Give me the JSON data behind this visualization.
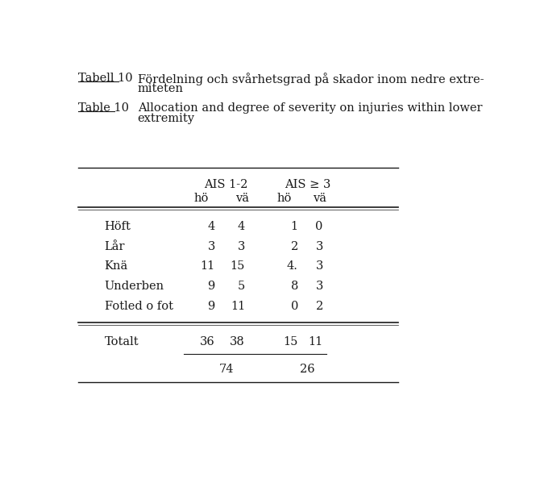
{
  "title_swedish": "Tabell 10",
  "title_swedish_text1": "Fördelning och svårhetsgrad på skador inom nedre extre-",
  "title_swedish_text2": "miteten",
  "title_english": "Table 10",
  "title_english_text1": "Allocation and degree of severity on injuries within lower",
  "title_english_text2": "extremity",
  "col_header1": "AIS 1-2",
  "col_header2": "AIS ≥ 3",
  "subheader_ho": "hö",
  "subheader_va": "vä",
  "rows": [
    {
      "label": "Höft",
      "ais12_ho": "4",
      "ais12_va": "4",
      "ais3_ho": "1",
      "ais3_va": "0"
    },
    {
      "label": "Lår",
      "ais12_ho": "3",
      "ais12_va": "3",
      "ais3_ho": "2",
      "ais3_va": "3"
    },
    {
      "label": "Knä",
      "ais12_ho": "11",
      "ais12_va": "15",
      "ais3_ho": "4.",
      "ais3_va": "3"
    },
    {
      "label": "Underben",
      "ais12_ho": "9",
      "ais12_va": "5",
      "ais3_ho": "8",
      "ais3_va": "3"
    },
    {
      "label": "Fotled o fot",
      "ais12_ho": "9",
      "ais12_va": "11",
      "ais3_ho": "0",
      "ais3_va": "2"
    }
  ],
  "total_label": "Totalt",
  "total_ais12_ho": "36",
  "total_ais12_va": "38",
  "total_ais3_ho": "15",
  "total_ais3_va": "11",
  "subtotal_ais12": "74",
  "subtotal_ais3": "26",
  "bg_color": "#ffffff",
  "text_color": "#1a1a1a",
  "font_size": 10.5
}
